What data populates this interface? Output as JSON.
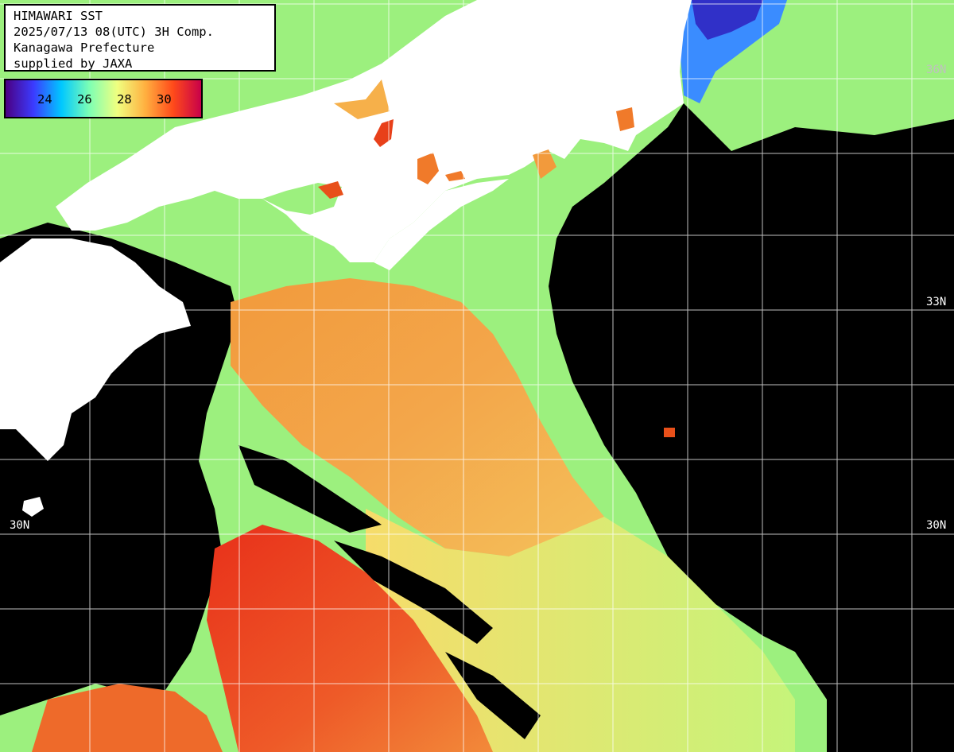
{
  "header": {
    "line1": "HIMAWARI SST",
    "line2": "2025/07/13 08(UTC) 3H Comp.",
    "line3": "Kanagawa Prefecture",
    "line4": "supplied by JAXA"
  },
  "legend": {
    "ticks": [
      "24",
      "26",
      "28",
      "30"
    ],
    "colors": [
      "#4b0082",
      "#3b3bff",
      "#00c8ff",
      "#7dffb4",
      "#f0ff80",
      "#ffb040",
      "#ff4a1a",
      "#c8004a"
    ]
  },
  "latitude_labels": [
    {
      "left": "30N",
      "right": "30N",
      "lat": 30
    },
    {
      "left": "",
      "right": "33N",
      "lat": 33
    },
    {
      "left": "",
      "right": "36N",
      "lat": 36
    }
  ],
  "colors": {
    "land": "#ffffff",
    "no_data": "#000000",
    "grid": "#ffffff",
    "warm": "#f07a2a",
    "hot": "#e8401a",
    "mild": "#f6cc5a",
    "cool": "#9cf080",
    "cold": "#3aa0ff"
  }
}
